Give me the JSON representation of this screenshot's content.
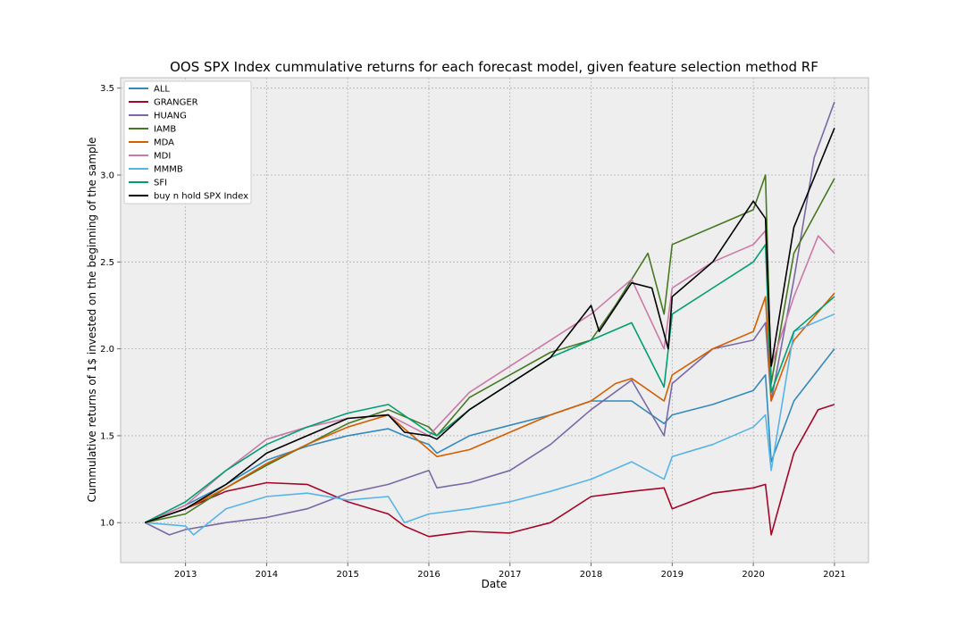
{
  "chart_data": {
    "type": "line",
    "title": "OOS SPX Index cummulative returns for each forecast model, given feature selection method RF",
    "xlabel": "Date",
    "ylabel": "Cummulative returns of 1$ invested on the beginning of the sample",
    "xlim": [
      2012.2,
      2021.42
    ],
    "ylim": [
      0.77,
      3.56
    ],
    "x_ticks": [
      2013,
      2014,
      2015,
      2016,
      2017,
      2018,
      2019,
      2020,
      2021
    ],
    "x_tick_labels": [
      "2013",
      "2014",
      "2015",
      "2016",
      "2017",
      "2018",
      "2019",
      "2020",
      "2021"
    ],
    "y_ticks": [
      1.0,
      1.5,
      2.0,
      2.5,
      3.0,
      3.5
    ],
    "y_tick_labels": [
      "1.0",
      "1.5",
      "2.0",
      "2.5",
      "3.0",
      "3.5"
    ],
    "grid": true,
    "legend_position": "top-left",
    "series": [
      {
        "name": "ALL",
        "color": "#348abd",
        "x": [
          2012.5,
          2013,
          2013.5,
          2014,
          2014.5,
          2015,
          2015.5,
          2015.7,
          2016,
          2016.1,
          2016.5,
          2017,
          2017.5,
          2018,
          2018.5,
          2018.9,
          2019,
          2019.5,
          2020,
          2020.15,
          2020.22,
          2020.5,
          2021
        ],
        "values": [
          1.0,
          1.1,
          1.22,
          1.36,
          1.44,
          1.5,
          1.54,
          1.5,
          1.45,
          1.4,
          1.5,
          1.56,
          1.62,
          1.7,
          1.7,
          1.57,
          1.62,
          1.68,
          1.76,
          1.85,
          1.35,
          1.7,
          2.0
        ]
      },
      {
        "name": "GRANGER",
        "color": "#a60628",
        "x": [
          2012.5,
          2013,
          2013.5,
          2014,
          2014.5,
          2015,
          2015.5,
          2015.7,
          2016,
          2016.5,
          2017,
          2017.5,
          2018,
          2018.5,
          2018.9,
          2019,
          2019.5,
          2020,
          2020.15,
          2020.22,
          2020.5,
          2020.8,
          2021
        ],
        "values": [
          1.0,
          1.08,
          1.18,
          1.23,
          1.22,
          1.12,
          1.05,
          0.98,
          0.92,
          0.95,
          0.94,
          1.0,
          1.15,
          1.18,
          1.2,
          1.08,
          1.17,
          1.2,
          1.22,
          0.93,
          1.4,
          1.65,
          1.68
        ]
      },
      {
        "name": "HUANG",
        "color": "#7a68a6",
        "x": [
          2012.5,
          2012.8,
          2013,
          2013.5,
          2014,
          2014.5,
          2015,
          2015.5,
          2016,
          2016.1,
          2016.5,
          2017,
          2017.5,
          2018,
          2018.5,
          2018.9,
          2019,
          2019.5,
          2020,
          2020.15,
          2020.22,
          2020.5,
          2020.75,
          2021
        ],
        "values": [
          1.0,
          0.93,
          0.96,
          1.0,
          1.03,
          1.08,
          1.17,
          1.22,
          1.3,
          1.2,
          1.23,
          1.3,
          1.45,
          1.65,
          1.82,
          1.5,
          1.8,
          2.0,
          2.05,
          2.15,
          1.7,
          2.4,
          3.1,
          3.42
        ]
      },
      {
        "name": "IAMB",
        "color": "#467821",
        "x": [
          2012.5,
          2013,
          2013.5,
          2014,
          2014.5,
          2015,
          2015.5,
          2016,
          2016.1,
          2016.5,
          2017,
          2017.5,
          2018,
          2018.3,
          2018.7,
          2018.9,
          2019,
          2019.5,
          2020,
          2020.15,
          2020.22,
          2020.5,
          2021
        ],
        "values": [
          1.0,
          1.05,
          1.2,
          1.33,
          1.45,
          1.57,
          1.65,
          1.55,
          1.5,
          1.72,
          1.85,
          1.98,
          2.05,
          2.25,
          2.55,
          2.2,
          2.6,
          2.7,
          2.8,
          3.0,
          1.8,
          2.55,
          2.98
        ]
      },
      {
        "name": "MDA",
        "color": "#d55e00",
        "x": [
          2012.5,
          2013,
          2013.5,
          2014,
          2014.5,
          2015,
          2015.5,
          2016,
          2016.1,
          2016.5,
          2017,
          2017.5,
          2018,
          2018.3,
          2018.5,
          2018.9,
          2019,
          2019.5,
          2020,
          2020.15,
          2020.22,
          2020.5,
          2021
        ],
        "values": [
          1.0,
          1.08,
          1.2,
          1.34,
          1.45,
          1.55,
          1.62,
          1.42,
          1.38,
          1.42,
          1.52,
          1.62,
          1.7,
          1.8,
          1.83,
          1.7,
          1.85,
          2.0,
          2.1,
          2.3,
          1.7,
          2.05,
          2.32
        ]
      },
      {
        "name": "MDI",
        "color": "#cc79a7",
        "x": [
          2012.5,
          2013,
          2013.5,
          2014,
          2014.5,
          2015,
          2015.5,
          2016,
          2016.1,
          2016.5,
          2017,
          2017.5,
          2018,
          2018.5,
          2018.9,
          2019,
          2019.5,
          2020,
          2020.15,
          2020.22,
          2020.5,
          2020.8,
          2021
        ],
        "values": [
          1.0,
          1.1,
          1.3,
          1.48,
          1.55,
          1.6,
          1.62,
          1.5,
          1.55,
          1.75,
          1.9,
          2.05,
          2.2,
          2.4,
          2.0,
          2.35,
          2.5,
          2.6,
          2.68,
          1.9,
          2.3,
          2.65,
          2.55
        ]
      },
      {
        "name": "MMMB",
        "color": "#56b4e9",
        "x": [
          2012.5,
          2013,
          2013.1,
          2013.5,
          2014,
          2014.5,
          2015,
          2015.5,
          2015.7,
          2016,
          2016.5,
          2017,
          2017.5,
          2018,
          2018.5,
          2018.9,
          2019,
          2019.5,
          2020,
          2020.15,
          2020.22,
          2020.5,
          2021
        ],
        "values": [
          1.0,
          0.98,
          0.93,
          1.08,
          1.15,
          1.17,
          1.13,
          1.15,
          1.0,
          1.05,
          1.08,
          1.12,
          1.18,
          1.25,
          1.35,
          1.25,
          1.38,
          1.45,
          1.55,
          1.62,
          1.3,
          2.1,
          2.2
        ]
      },
      {
        "name": "SFI",
        "color": "#009e73",
        "x": [
          2012.5,
          2013,
          2013.5,
          2014,
          2014.5,
          2015,
          2015.5,
          2016,
          2016.1,
          2016.5,
          2017,
          2017.5,
          2018,
          2018.5,
          2018.9,
          2019,
          2019.5,
          2020,
          2020.15,
          2020.22,
          2020.5,
          2021
        ],
        "values": [
          1.0,
          1.12,
          1.3,
          1.45,
          1.55,
          1.63,
          1.68,
          1.52,
          1.5,
          1.65,
          1.8,
          1.95,
          2.05,
          2.15,
          1.78,
          2.2,
          2.35,
          2.5,
          2.6,
          1.75,
          2.1,
          2.3
        ]
      },
      {
        "name": "buy n hold SPX Index",
        "color": "#000000",
        "x": [
          2012.5,
          2013,
          2013.5,
          2014,
          2014.5,
          2015,
          2015.5,
          2015.7,
          2016,
          2016.1,
          2016.5,
          2017,
          2017.5,
          2018,
          2018.1,
          2018.5,
          2018.75,
          2018.95,
          2019,
          2019.5,
          2020,
          2020.15,
          2020.22,
          2020.5,
          2021
        ],
        "values": [
          1.0,
          1.08,
          1.22,
          1.4,
          1.5,
          1.6,
          1.62,
          1.52,
          1.5,
          1.48,
          1.65,
          1.8,
          1.95,
          2.25,
          2.1,
          2.38,
          2.35,
          2.0,
          2.3,
          2.5,
          2.85,
          2.75,
          1.9,
          2.7,
          3.27
        ]
      }
    ]
  }
}
